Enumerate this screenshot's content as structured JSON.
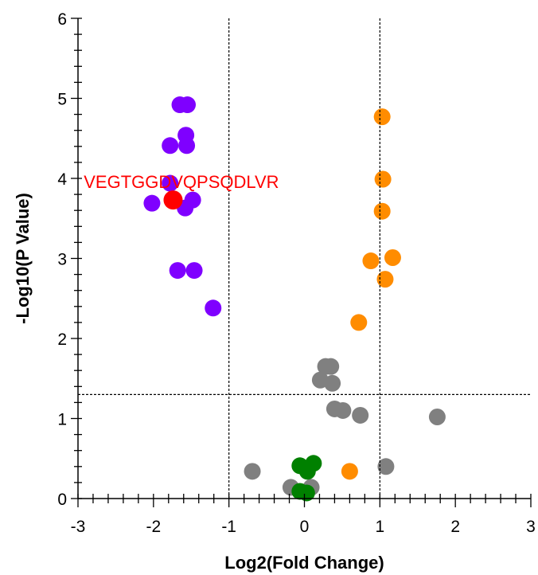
{
  "chart_data": {
    "type": "scatter",
    "xlabel": "Log2(Fold Change)",
    "ylabel": "-Log10(P Value)",
    "xlim": [
      -3,
      3
    ],
    "ylim": [
      0,
      6
    ],
    "x_ticks": [
      "-3",
      "-2",
      "-1",
      "0",
      "1",
      "2",
      "3"
    ],
    "y_ticks": [
      "0",
      "1",
      "2",
      "3",
      "4",
      "5",
      "6"
    ],
    "thresholds": {
      "x": [
        -1,
        1
      ],
      "y": 1.3
    },
    "colors": {
      "down": "#7f00ff",
      "up": "#ff8c00",
      "not_significant": "#808080",
      "near_zero": "#008000",
      "highlight": "#ff0000"
    },
    "series": [
      {
        "group": "down",
        "points": [
          [
            -1.65,
            4.92
          ],
          [
            -1.55,
            4.92
          ],
          [
            -1.57,
            4.54
          ],
          [
            -1.78,
            4.41
          ],
          [
            -1.56,
            4.41
          ],
          [
            -1.78,
            3.94
          ],
          [
            -1.48,
            3.73
          ],
          [
            -2.02,
            3.69
          ],
          [
            -1.58,
            3.63
          ],
          [
            -1.68,
            2.85
          ],
          [
            -1.46,
            2.85
          ],
          [
            -1.21,
            2.38
          ]
        ]
      },
      {
        "group": "up",
        "points": [
          [
            1.03,
            4.77
          ],
          [
            1.04,
            3.99
          ],
          [
            1.03,
            3.59
          ],
          [
            1.17,
            3.01
          ],
          [
            0.88,
            2.97
          ],
          [
            1.07,
            2.74
          ],
          [
            0.72,
            2.2
          ],
          [
            0.6,
            0.34
          ]
        ]
      },
      {
        "group": "not_significant",
        "points": [
          [
            0.28,
            1.65
          ],
          [
            0.35,
            1.65
          ],
          [
            0.21,
            1.48
          ],
          [
            0.37,
            1.44
          ],
          [
            0.4,
            1.12
          ],
          [
            0.51,
            1.1
          ],
          [
            0.74,
            1.04
          ],
          [
            1.76,
            1.02
          ],
          [
            1.08,
            0.4
          ],
          [
            -0.69,
            0.34
          ],
          [
            -0.18,
            0.14
          ],
          [
            0.09,
            0.14
          ]
        ]
      },
      {
        "group": "near_zero",
        "points": [
          [
            -0.06,
            0.41
          ],
          [
            0.12,
            0.44
          ],
          [
            0.04,
            0.34
          ],
          [
            -0.06,
            0.09
          ],
          [
            0.03,
            0.07
          ]
        ]
      }
    ],
    "highlight": {
      "label": "VEGTGGDVQPSQDLVR",
      "x": -1.74,
      "y": 3.73
    }
  }
}
